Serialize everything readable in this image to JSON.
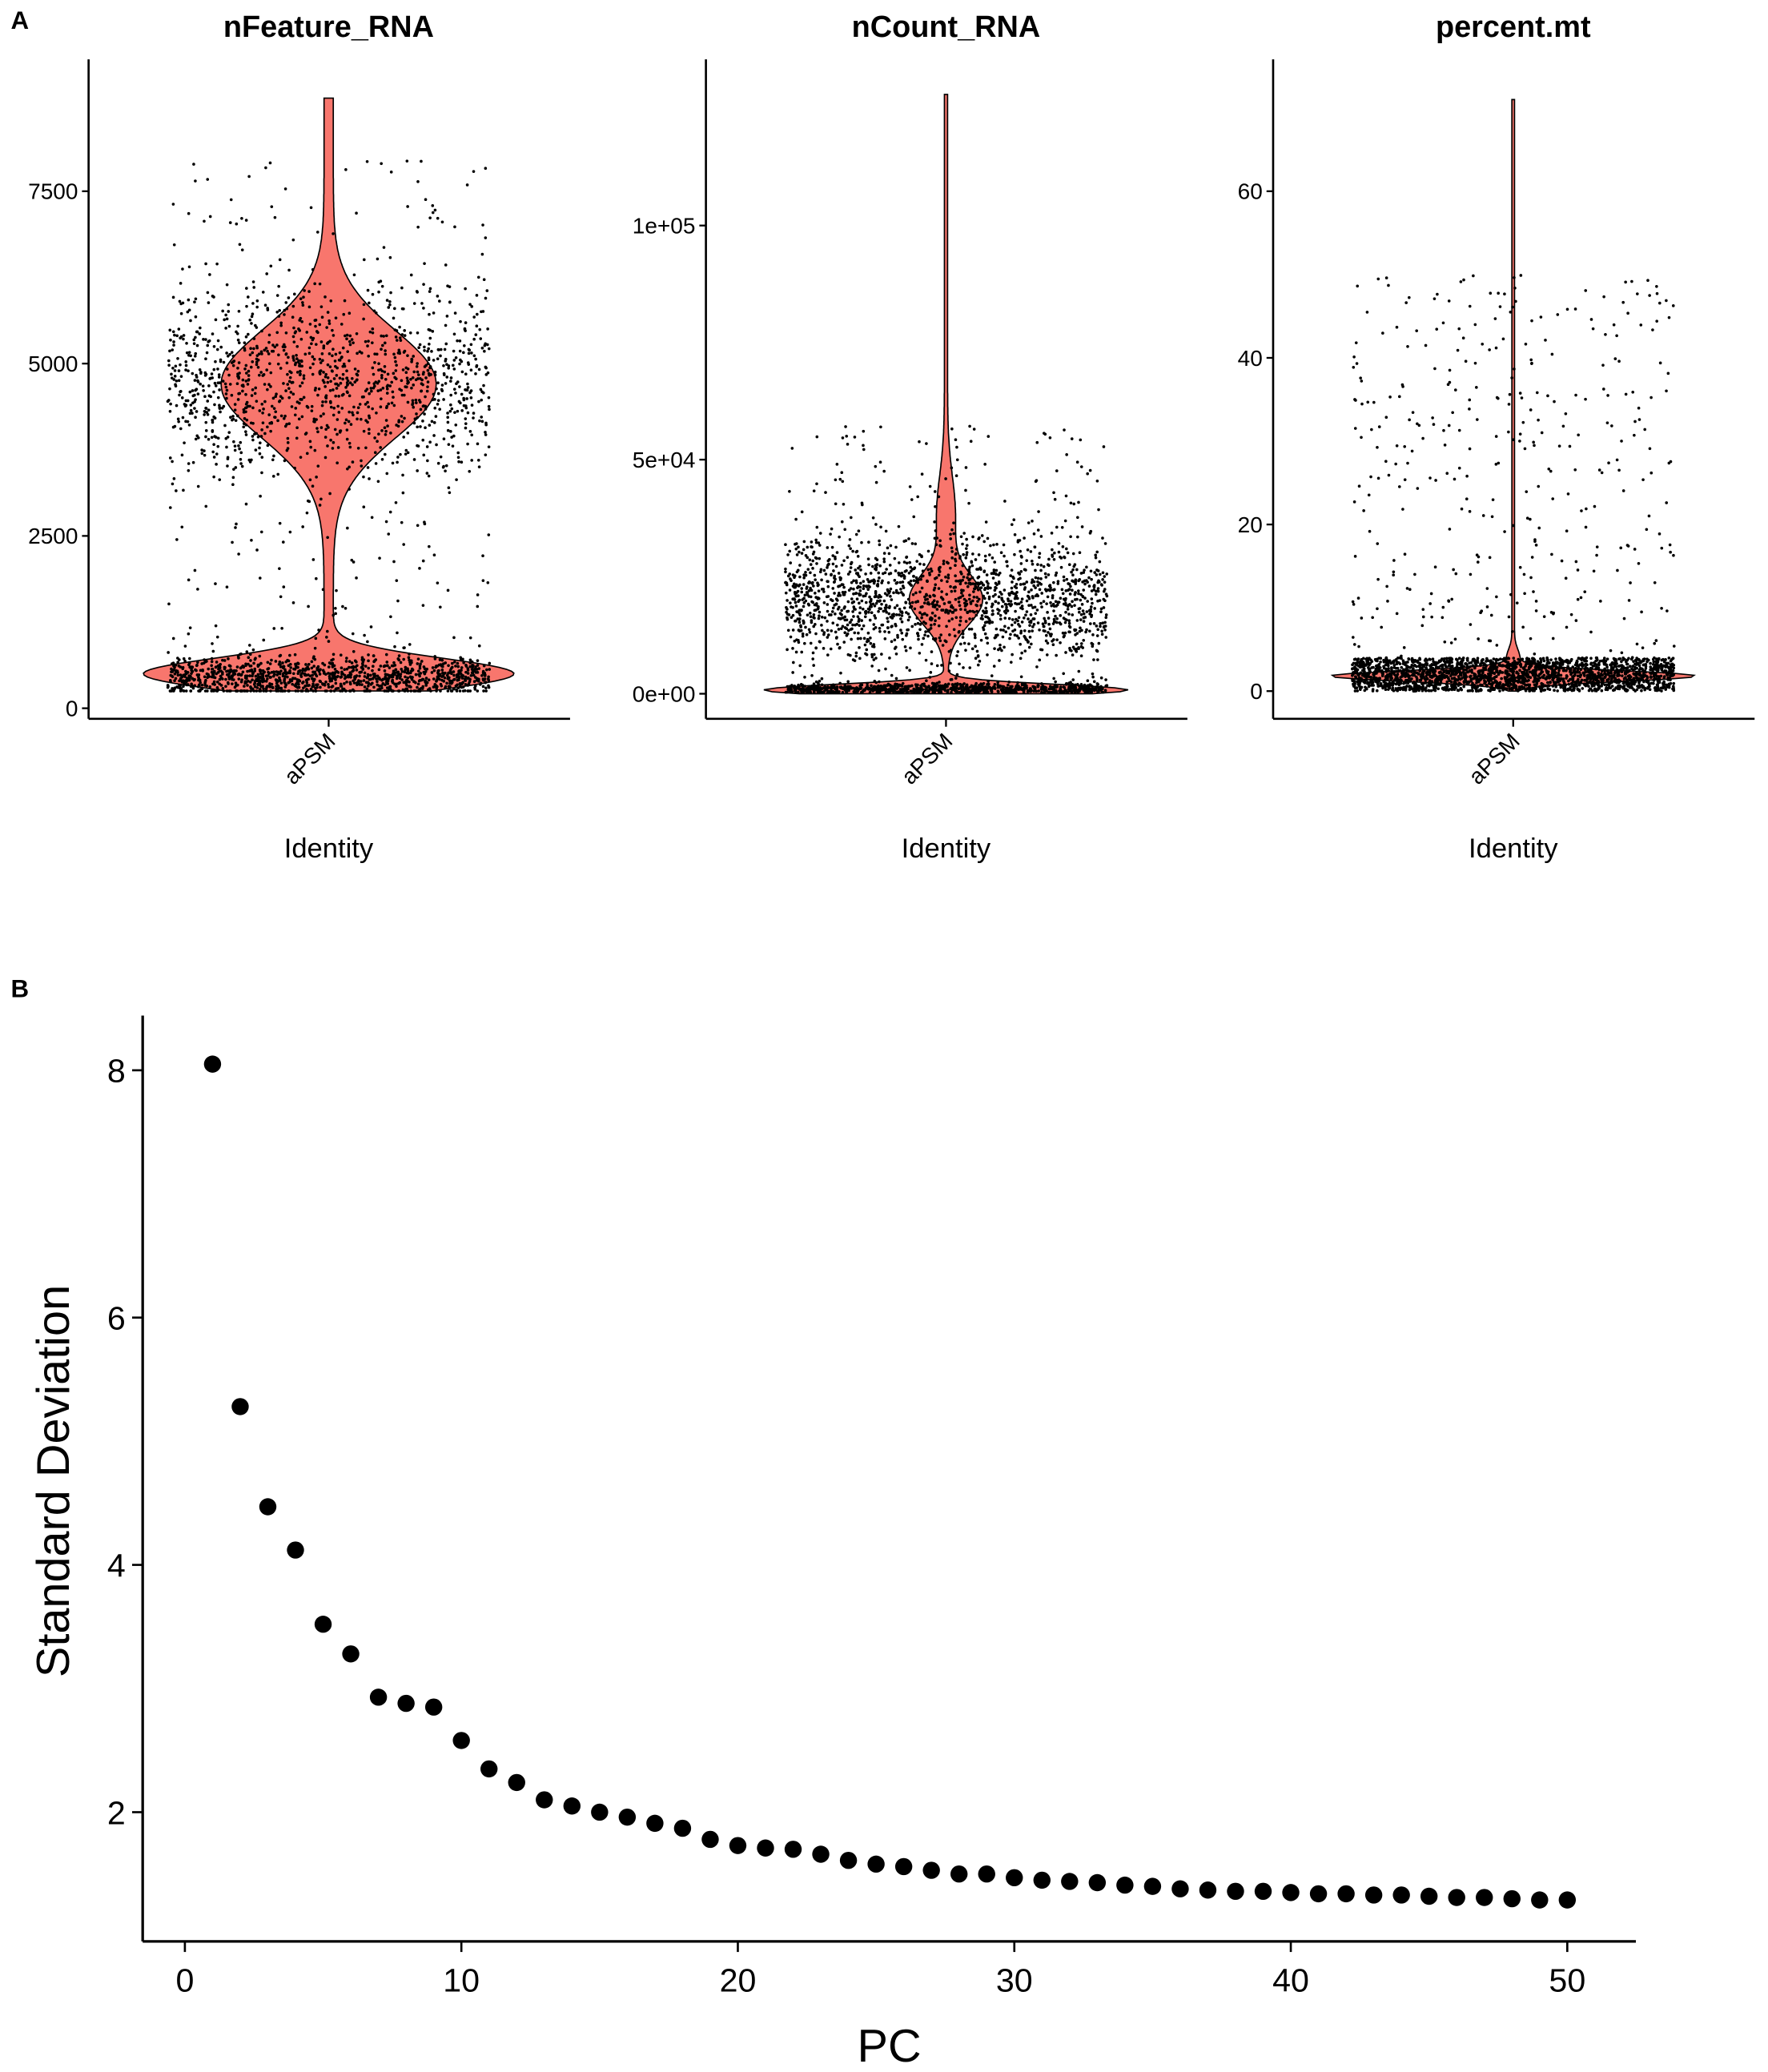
{
  "panel_labels": [
    "A",
    "B"
  ],
  "chart_data": [
    {
      "type": "violin",
      "title": "nFeature_RNA",
      "xlabel": "Identity",
      "categories": [
        "aPSM"
      ],
      "yticks": [
        0,
        2500,
        5000,
        7500
      ],
      "ytick_labels": [
        "0",
        "2500",
        "5000",
        "7500"
      ],
      "ylim": [
        0,
        9000
      ],
      "max": 8850,
      "fill": "#F8766D",
      "jitter_points": true
    },
    {
      "type": "violin",
      "title": "nCount_RNA",
      "xlabel": "Identity",
      "categories": [
        "aPSM"
      ],
      "yticks": [
        0,
        50000,
        100000
      ],
      "ytick_labels": [
        "0e+00",
        "5e+04",
        "1e+05"
      ],
      "ylim": [
        0,
        130000
      ],
      "max": 128000,
      "fill": "#F8766D",
      "jitter_points": true
    },
    {
      "type": "violin",
      "title": "percent.mt",
      "xlabel": "Identity",
      "categories": [
        "aPSM"
      ],
      "yticks": [
        0,
        20,
        40,
        60
      ],
      "ytick_labels": [
        "0",
        "20",
        "40",
        "60"
      ],
      "ylim": [
        0,
        72
      ],
      "max": 71,
      "fill": "#F8766D",
      "jitter_points": true
    },
    {
      "type": "scatter",
      "xlabel": "PC",
      "ylabel": "Standard Deviation",
      "xticks": [
        0,
        10,
        20,
        30,
        40,
        50
      ],
      "yticks": [
        2,
        4,
        6,
        8
      ],
      "xlim": [
        -1.5,
        52.5
      ],
      "ylim": [
        1.0,
        8.45
      ],
      "x": [
        1,
        2,
        3,
        4,
        5,
        6,
        7,
        8,
        9,
        10,
        11,
        12,
        13,
        14,
        15,
        16,
        17,
        18,
        19,
        20,
        21,
        22,
        23,
        24,
        25,
        26,
        27,
        28,
        29,
        30,
        31,
        32,
        33,
        34,
        35,
        36,
        37,
        38,
        39,
        40,
        41,
        42,
        43,
        44,
        45,
        46,
        47,
        48,
        49,
        50
      ],
      "y": [
        8.05,
        5.28,
        4.47,
        4.12,
        3.52,
        3.28,
        2.93,
        2.88,
        2.85,
        2.58,
        2.35,
        2.24,
        2.1,
        2.05,
        2.0,
        1.96,
        1.91,
        1.87,
        1.78,
        1.73,
        1.71,
        1.7,
        1.66,
        1.61,
        1.58,
        1.56,
        1.53,
        1.5,
        1.5,
        1.47,
        1.45,
        1.44,
        1.43,
        1.41,
        1.4,
        1.38,
        1.37,
        1.36,
        1.36,
        1.35,
        1.34,
        1.34,
        1.33,
        1.33,
        1.32,
        1.31,
        1.31,
        1.3,
        1.29,
        1.29
      ],
      "point_color": "#000000"
    }
  ]
}
